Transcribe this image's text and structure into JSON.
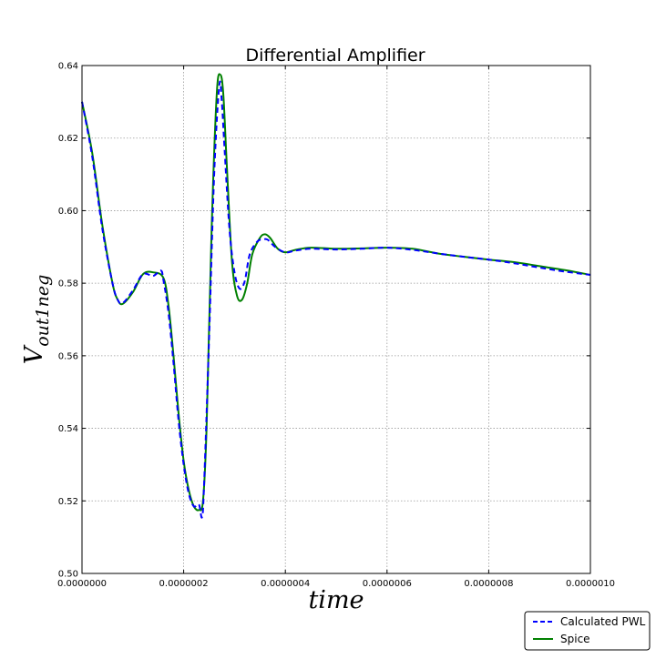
{
  "chart_data": {
    "type": "line",
    "title": "Differential Amplifier",
    "xlabel": "time",
    "ylabel": {
      "base": "V",
      "sub": "out1neg"
    },
    "xlim": [
      0,
      1e-06
    ],
    "ylim": [
      0.5,
      0.64
    ],
    "grid": true,
    "legend_position": "bottom-right",
    "x_ticks": [
      0,
      2e-07,
      4e-07,
      6e-07,
      8e-07,
      1e-06
    ],
    "x_tick_labels": [
      "0.0000000",
      "0.0000002",
      "0.0000004",
      "0.0000006",
      "0.0000008",
      "0.0000010"
    ],
    "y_ticks": [
      0.5,
      0.52,
      0.54,
      0.56,
      0.58,
      0.6,
      0.62,
      0.64
    ],
    "y_tick_labels": [
      "0.50",
      "0.52",
      "0.54",
      "0.56",
      "0.58",
      "0.60",
      "0.62",
      "0.64"
    ],
    "series": [
      {
        "name": "Calculated PWL",
        "color": "#0000ff",
        "style": "dashed",
        "x": [
          0,
          2e-08,
          4e-08,
          6e-08,
          7e-08,
          8e-08,
          1e-07,
          1.2e-07,
          1.4e-07,
          1.55e-07,
          1.6e-07,
          1.7e-07,
          1.8e-07,
          1.9e-07,
          2e-07,
          2.1e-07,
          2.2e-07,
          2.3e-07,
          2.36e-07,
          2.4e-07,
          2.5e-07,
          2.6e-07,
          2.7e-07,
          2.75e-07,
          2.8e-07,
          2.9e-07,
          3e-07,
          3.1e-07,
          3.2e-07,
          3.3e-07,
          3.45e-07,
          3.55e-07,
          3.65e-07,
          3.8e-07,
          4e-07,
          4.2e-07,
          4.5e-07,
          5e-07,
          5.5e-07,
          6e-07,
          6.5e-07,
          7e-07,
          7.5e-07,
          8e-07,
          8.5e-07,
          9e-07,
          9.5e-07,
          1e-06
        ],
        "y": [
          0.63,
          0.615,
          0.595,
          0.58,
          0.5755,
          0.5745,
          0.578,
          0.5825,
          0.582,
          0.5835,
          0.581,
          0.572,
          0.558,
          0.542,
          0.53,
          0.522,
          0.5185,
          0.519,
          0.5155,
          0.524,
          0.565,
          0.61,
          0.6345,
          0.63,
          0.618,
          0.595,
          0.583,
          0.5785,
          0.5805,
          0.588,
          0.5915,
          0.592,
          0.592,
          0.59,
          0.5885,
          0.589,
          0.5895,
          0.5893,
          0.5895,
          0.5898,
          0.5892,
          0.5882,
          0.5873,
          0.5865,
          0.5855,
          0.5843,
          0.5832,
          0.5823
        ]
      },
      {
        "name": "Spice",
        "color": "#008000",
        "style": "solid",
        "x": [
          0,
          2e-08,
          4e-08,
          6e-08,
          7e-08,
          8e-08,
          1e-07,
          1.2e-07,
          1.4e-07,
          1.6e-07,
          1.7e-07,
          1.8e-07,
          1.9e-07,
          2e-07,
          2.1e-07,
          2.2e-07,
          2.3e-07,
          2.38e-07,
          2.45e-07,
          2.55e-07,
          2.65e-07,
          2.72e-07,
          2.78e-07,
          2.85e-07,
          2.95e-07,
          3.05e-07,
          3.15e-07,
          3.25e-07,
          3.35e-07,
          3.5e-07,
          3.6e-07,
          3.7e-07,
          3.85e-07,
          4e-07,
          4.2e-07,
          4.5e-07,
          5e-07,
          5.5e-07,
          6e-07,
          6.5e-07,
          7e-07,
          7.5e-07,
          8e-07,
          8.5e-07,
          9e-07,
          9.5e-07,
          1e-06
        ],
        "y": [
          0.63,
          0.616,
          0.596,
          0.58,
          0.5755,
          0.5743,
          0.5775,
          0.5825,
          0.583,
          0.5815,
          0.574,
          0.56,
          0.544,
          0.531,
          0.523,
          0.5185,
          0.5175,
          0.52,
          0.54,
          0.595,
          0.632,
          0.6375,
          0.632,
          0.612,
          0.586,
          0.5765,
          0.5755,
          0.58,
          0.588,
          0.5925,
          0.5935,
          0.5925,
          0.5895,
          0.5885,
          0.5892,
          0.5898,
          0.5895,
          0.5896,
          0.5898,
          0.5895,
          0.5882,
          0.5873,
          0.5865,
          0.5858,
          0.5847,
          0.5836,
          0.5823
        ]
      }
    ]
  }
}
